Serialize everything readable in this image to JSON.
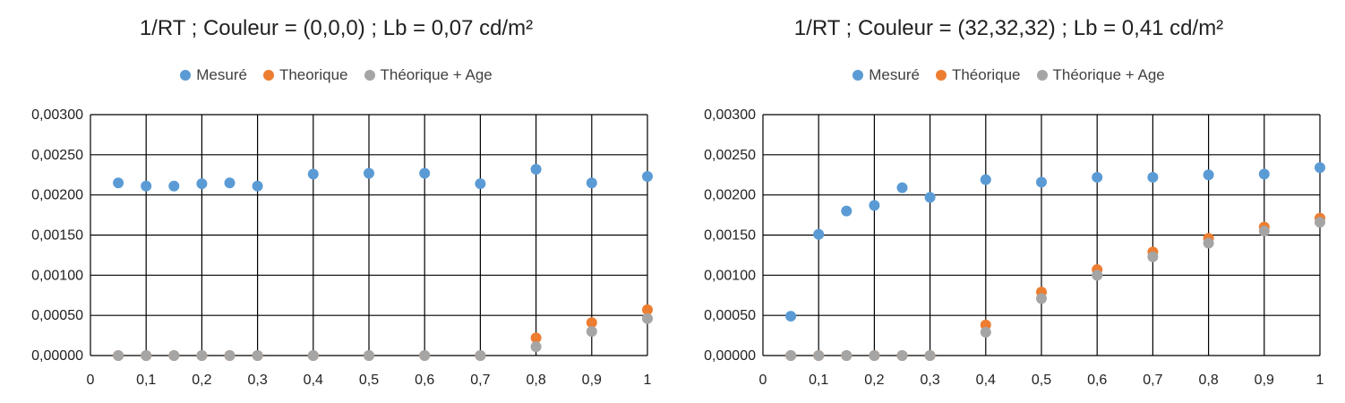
{
  "chart_data": [
    {
      "type": "scatter",
      "title": "1/RT ; Couleur = (0,0,0) ; Lb = 0,07 cd/m²",
      "xlim": [
        0,
        1
      ],
      "ylim": [
        0,
        0.003
      ],
      "x_ticks": [
        "0",
        "0,1",
        "0,2",
        "0,3",
        "0,4",
        "0,5",
        "0,6",
        "0,7",
        "0,8",
        "0,9",
        "1"
      ],
      "y_ticks": [
        "0,00000",
        "0,00050",
        "0,00100",
        "0,00150",
        "0,00200",
        "0,00250",
        "0,00300"
      ],
      "grid": true,
      "legend_position": "top",
      "x": [
        0.05,
        0.1,
        0.15,
        0.2,
        0.25,
        0.3,
        0.4,
        0.5,
        0.6,
        0.7,
        0.8,
        0.9,
        1.0
      ],
      "series": [
        {
          "name": "Mesuré",
          "color": "#5B9BD5",
          "values": [
            0.00215,
            0.00211,
            0.00211,
            0.00214,
            0.00215,
            0.00211,
            0.00226,
            0.00227,
            0.00227,
            0.00214,
            0.00232,
            0.00215,
            0.00223
          ]
        },
        {
          "name": "Theorique",
          "color": "#ED7D31",
          "values": [
            0,
            0,
            0,
            0,
            0,
            0,
            0,
            0,
            0,
            0,
            0.00022,
            0.00041,
            0.00057
          ]
        },
        {
          "name": "Théorique + Age",
          "color": "#A5A5A5",
          "values": [
            0,
            0,
            0,
            0,
            0,
            0,
            0,
            0,
            0,
            0,
            0.00011,
            0.0003,
            0.00046
          ]
        }
      ]
    },
    {
      "type": "scatter",
      "title": "1/RT ; Couleur = (32,32,32) ; Lb = 0,41 cd/m²",
      "xlim": [
        0,
        1
      ],
      "ylim": [
        0,
        0.003
      ],
      "x_ticks": [
        "0",
        "0,1",
        "0,2",
        "0,3",
        "0,4",
        "0,5",
        "0,6",
        "0,7",
        "0,8",
        "0,9",
        "1"
      ],
      "y_ticks": [
        "0,00000",
        "0,00050",
        "0,00100",
        "0,00150",
        "0,00200",
        "0,00250",
        "0,00300"
      ],
      "grid": true,
      "legend_position": "top",
      "x": [
        0.05,
        0.1,
        0.15,
        0.2,
        0.25,
        0.3,
        0.4,
        0.5,
        0.6,
        0.7,
        0.8,
        0.9,
        1.0
      ],
      "series": [
        {
          "name": "Mesuré",
          "color": "#5B9BD5",
          "values": [
            0.00049,
            0.00151,
            0.0018,
            0.00187,
            0.00209,
            0.00197,
            0.00219,
            0.00216,
            0.00222,
            0.00222,
            0.00225,
            0.00226,
            0.00234
          ]
        },
        {
          "name": "Théorique",
          "color": "#ED7D31",
          "values": [
            0,
            0,
            0,
            0,
            0,
            0,
            0.00038,
            0.00079,
            0.00107,
            0.00129,
            0.00146,
            0.0016,
            0.00171
          ]
        },
        {
          "name": "Théorique + Age",
          "color": "#A5A5A5",
          "values": [
            0,
            0,
            0,
            0,
            0,
            0,
            0.00029,
            0.00071,
            0.001,
            0.00123,
            0.0014,
            0.00155,
            0.00166
          ]
        }
      ]
    }
  ]
}
